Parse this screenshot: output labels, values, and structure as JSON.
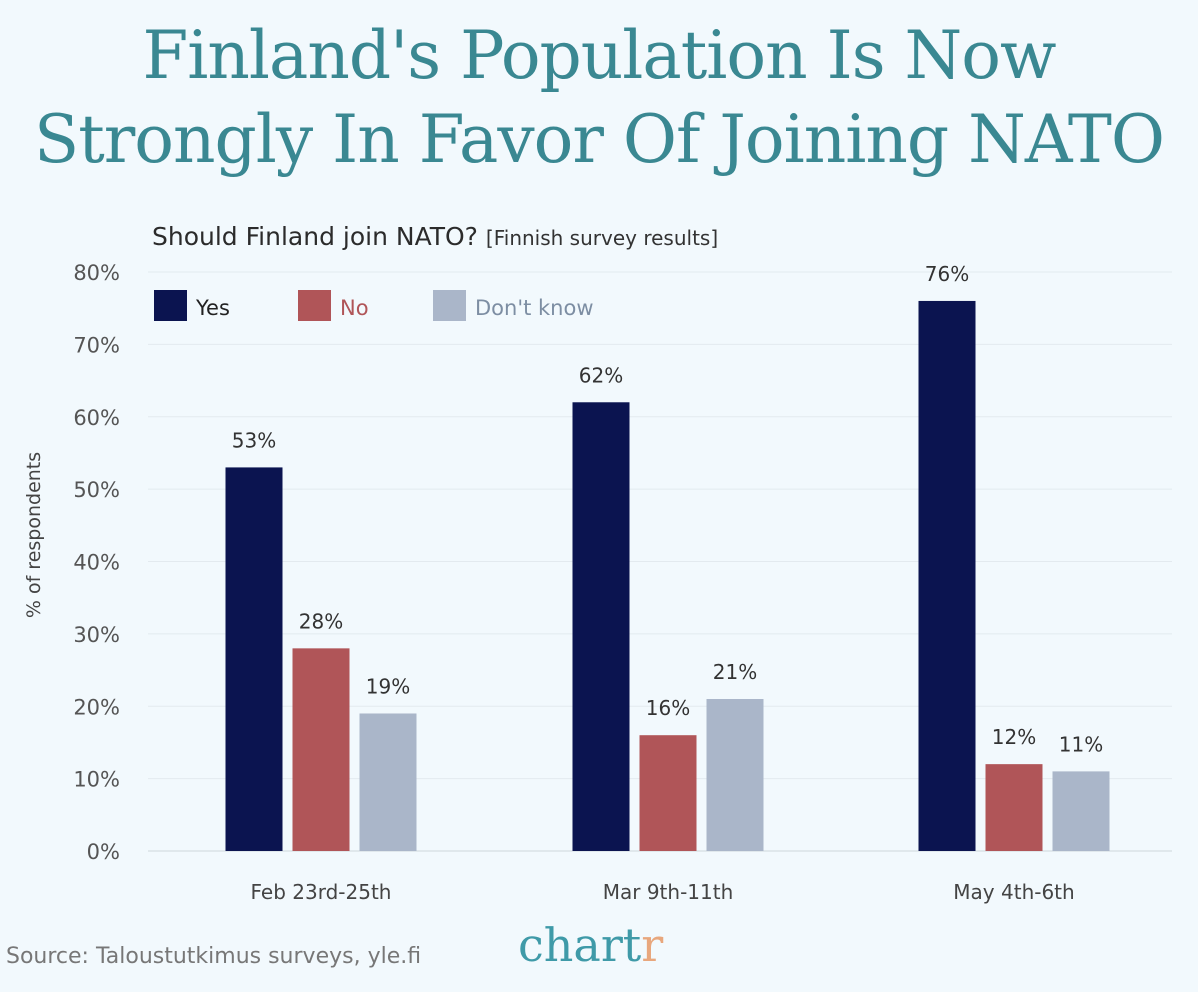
{
  "title_lines": [
    "Finland's Population Is Now",
    "Strongly In Favor Of Joining NATO"
  ],
  "chart_data": {
    "type": "bar",
    "title": "Should Finland join NATO?",
    "title_note": "[Finnish survey results]",
    "ylabel": "% of respondents",
    "xlabel": "",
    "ylim": [
      0,
      80
    ],
    "yticks": [
      "0%",
      "10%",
      "20%",
      "30%",
      "40%",
      "50%",
      "60%",
      "70%",
      "80%"
    ],
    "grid": true,
    "legend_position": "top-left",
    "categories": [
      "Feb 23rd-25th",
      "Mar 9th-11th",
      "May 4th-6th"
    ],
    "series": [
      {
        "name": "Yes",
        "values": [
          53,
          62,
          76
        ],
        "labels": [
          "53%",
          "62%",
          "76%"
        ],
        "color": "#0b1450"
      },
      {
        "name": "No",
        "values": [
          28,
          16,
          12
        ],
        "labels": [
          "28%",
          "16%",
          "12%"
        ],
        "color": "#b05558"
      },
      {
        "name": "Don't know",
        "values": [
          19,
          21,
          11
        ],
        "labels": [
          "19%",
          "21%",
          "11%"
        ],
        "color": "#aab6c9"
      }
    ]
  },
  "source": "Source: Taloustutkimus surveys, yle.fi",
  "logo": {
    "main": "chart",
    "accent": "r"
  }
}
